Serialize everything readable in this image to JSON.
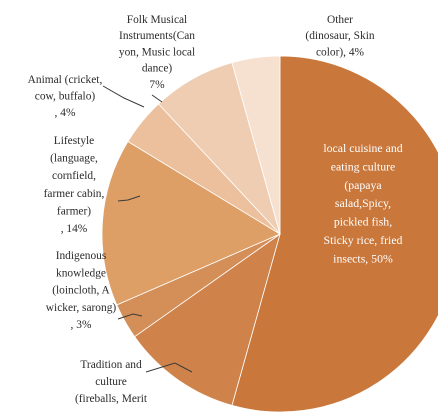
{
  "chart_data": {
    "type": "pie",
    "title": "",
    "slices": [
      {
        "label": [
          "local cuisine and",
          "eating culture",
          "(papaya",
          "salad,Spicy,",
          "pickled fish,",
          "Sticky rice, fried",
          "insects, 50%"
        ],
        "value": 50,
        "color": "#c9773b"
      },
      {
        "label": [
          "Tradition and",
          "culture",
          "(fireballs, Merit"
        ],
        "value": 10,
        "color": "#cf834a"
      },
      {
        "label": [
          "Indigenous",
          "knowledge",
          "(loincloth, A",
          "wicker, sarong)",
          ", 3%"
        ],
        "value": 3,
        "color": "#d48f58"
      },
      {
        "label": [
          "Lifestyle",
          "(language,",
          "cornfield,",
          "farmer cabin,",
          "farmer)",
          ", 14%"
        ],
        "value": 14,
        "color": "#de9f67"
      },
      {
        "label": [
          "Animal (cricket,",
          "cow, buffalo)",
          ", 4%"
        ],
        "value": 4,
        "color": "#ecc09c"
      },
      {
        "label": [
          "Folk Musical",
          "Instruments(Can",
          "yon, Music local",
          "dance)",
          "7%"
        ],
        "value": 7,
        "color": "#efcdb2"
      },
      {
        "label": [
          "Other",
          "(dinosaur, Skin",
          "color), 4%"
        ],
        "value": 4,
        "color": "#f6e1d1"
      }
    ]
  }
}
